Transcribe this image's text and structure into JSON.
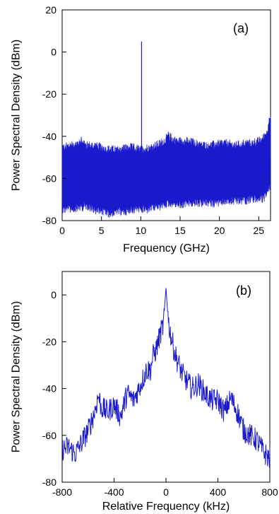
{
  "chart_data": [
    {
      "type": "line",
      "panel_label": "(a)",
      "xlabel": "Frequency (GHz)",
      "ylabel": "Power Spectral Density (dBm)",
      "xlim": [
        0,
        26.5
      ],
      "ylim": [
        -80,
        20
      ],
      "xticks": [
        0,
        5,
        10,
        15,
        20,
        25
      ],
      "yticks": [
        20,
        0,
        -20,
        -40,
        -60,
        -80
      ],
      "grid": false,
      "color": "#1a1acc",
      "series": [
        {
          "x": [
            0,
            1,
            2,
            2.5,
            3,
            4,
            5,
            6,
            7,
            8,
            9,
            10,
            10.05,
            10.1,
            10.15,
            10.2,
            11,
            12,
            13,
            13.5,
            14,
            15,
            16,
            17,
            18,
            19,
            20,
            21,
            22,
            23,
            24,
            25,
            25.5,
            26,
            26.3,
            26.5
          ],
          "y_upper": [
            -46,
            -45,
            -44,
            -42,
            -45,
            -45,
            -46,
            -47,
            -47,
            -46,
            -46,
            -47,
            -47,
            5,
            -47,
            -47,
            -46,
            -45,
            -43,
            -40,
            -42,
            -43,
            -43,
            -44,
            -45,
            -45,
            -44,
            -44,
            -45,
            -44,
            -44,
            -43,
            -42,
            -39,
            -34,
            -32
          ],
          "y_lower": [
            -74,
            -74,
            -73,
            -73,
            -72,
            -74,
            -75,
            -76,
            -75,
            -75,
            -74,
            -74,
            -74,
            -74,
            -74,
            -74,
            -74,
            -73,
            -72,
            -71,
            -71,
            -72,
            -71,
            -71,
            -71,
            -71,
            -71,
            -70,
            -70,
            -70,
            -69,
            -69,
            -69,
            -67,
            -64,
            -62
          ]
        }
      ]
    },
    {
      "type": "line",
      "panel_label": "(b)",
      "xlabel": "Relative Frequency (kHz)",
      "ylabel": "Power Spectral Density (dBm)",
      "xlim": [
        -800,
        800
      ],
      "ylim": [
        -80,
        10
      ],
      "xticks": [
        -800,
        -400,
        0,
        400,
        800
      ],
      "yticks": [
        0,
        -20,
        -40,
        -60,
        -80
      ],
      "grid": false,
      "color": "#1a1acc",
      "series": [
        {
          "x": [
            -800,
            -750,
            -700,
            -650,
            -600,
            -550,
            -520,
            -500,
            -450,
            -400,
            -350,
            -300,
            -250,
            -200,
            -150,
            -120,
            -100,
            -80,
            -60,
            -40,
            -20,
            -10,
            0,
            10,
            20,
            40,
            60,
            80,
            100,
            120,
            150,
            200,
            250,
            300,
            350,
            400,
            450,
            500,
            550,
            600,
            650,
            700,
            750,
            800
          ],
          "y": [
            -66,
            -65,
            -68,
            -63,
            -58,
            -50,
            -43,
            -48,
            -50,
            -47,
            -52,
            -42,
            -45,
            -39,
            -32,
            -32,
            -26,
            -24,
            -20,
            -16,
            -13,
            -5,
            3,
            -5,
            -12,
            -18,
            -23,
            -27,
            -30,
            -33,
            -36,
            -40,
            -38,
            -42,
            -45,
            -45,
            -50,
            -44,
            -50,
            -58,
            -60,
            -62,
            -67,
            -70
          ]
        }
      ]
    }
  ]
}
